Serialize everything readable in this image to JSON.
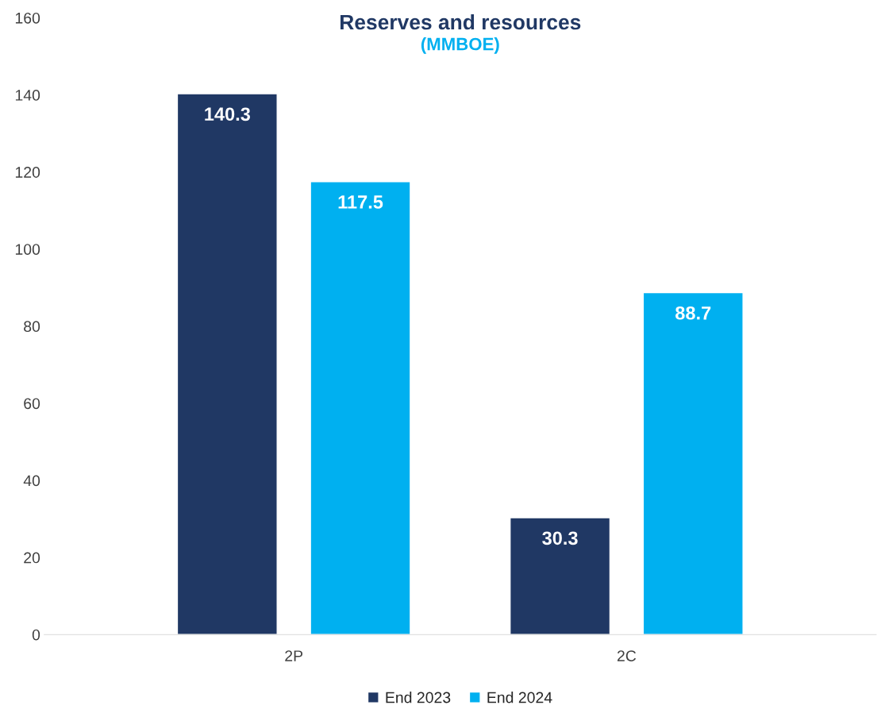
{
  "chart_data": {
    "type": "bar",
    "title": "Reserves and resources",
    "subtitle": "(MMBOE)",
    "categories": [
      "2P",
      "2C"
    ],
    "series": [
      {
        "name": "End 2023",
        "color": "#203864",
        "values": [
          140.3,
          30.3
        ]
      },
      {
        "name": "End 2024",
        "color": "#00b0f0",
        "values": [
          117.5,
          88.7
        ]
      }
    ],
    "ylim": [
      0,
      160
    ],
    "yticks": [
      0,
      20,
      40,
      60,
      80,
      100,
      120,
      140,
      160
    ],
    "grid": false,
    "legend": "bottom",
    "data_labels": true
  }
}
